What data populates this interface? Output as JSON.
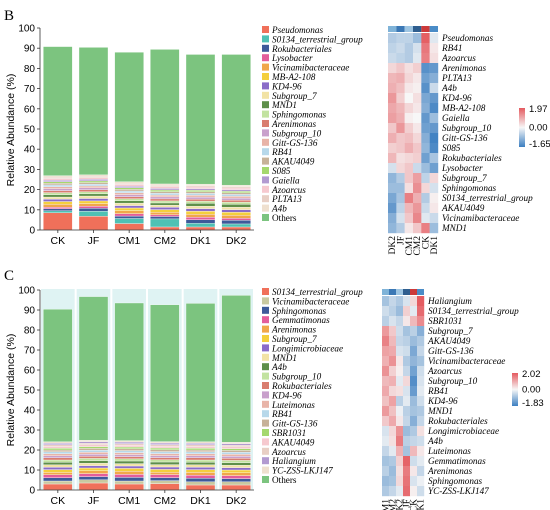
{
  "chart_data": [
    {
      "panel_label": "B",
      "type": "bar",
      "stacked": true,
      "ylabel": "Relative Abundance (%)",
      "ylim": [
        0,
        100
      ],
      "yticks": [
        "0",
        "10",
        "20",
        "30",
        "40",
        "50",
        "60",
        "70",
        "80",
        "90",
        "100"
      ],
      "categories": [
        "CK",
        "JF",
        "CM1",
        "CM2",
        "DK1",
        "DK2"
      ],
      "series": [
        {
          "name": "Pseudomonas",
          "color": "#f0705a",
          "values": [
            8.5,
            6.8,
            3.2,
            1.5,
            1.5,
            1.5
          ]
        },
        {
          "name": "S0134_terrestrial_group",
          "color": "#4fc1b4",
          "values": [
            1.0,
            2.5,
            2.5,
            4.0,
            1.8,
            1.5
          ]
        },
        {
          "name": "Rokubacteriales",
          "color": "#3d5a9a",
          "values": [
            1.0,
            1.5,
            1.2,
            1.2,
            1.8,
            1.8
          ]
        },
        {
          "name": "Lysobacter",
          "color": "#e35d9b",
          "values": [
            0.8,
            1.0,
            1.2,
            0.8,
            1.2,
            1.0
          ]
        },
        {
          "name": "Vicinamibacteraceae",
          "color": "#f0a74a",
          "values": [
            1.5,
            1.3,
            1.5,
            1.3,
            1.5,
            1.5
          ]
        },
        {
          "name": "MB-A2-108",
          "color": "#f4cf3c",
          "values": [
            1.3,
            1.3,
            1.3,
            1.3,
            1.5,
            1.5
          ]
        },
        {
          "name": "KD4-96",
          "color": "#8a6cc9",
          "values": [
            1.2,
            1.2,
            1.2,
            1.2,
            1.3,
            1.3
          ]
        },
        {
          "name": "Subgroup_7",
          "color": "#f2e3a5",
          "values": [
            1.0,
            1.2,
            1.2,
            1.0,
            1.2,
            1.2
          ]
        },
        {
          "name": "MND1",
          "color": "#5e8f4a",
          "values": [
            1.2,
            1.1,
            1.2,
            1.1,
            1.4,
            1.4
          ]
        },
        {
          "name": "Sphingomonas",
          "color": "#c2e3a0",
          "values": [
            1.0,
            1.0,
            1.0,
            1.0,
            1.1,
            1.1
          ]
        },
        {
          "name": "Arenimonas",
          "color": "#d97d6f",
          "values": [
            1.0,
            1.0,
            1.0,
            1.0,
            1.0,
            1.0
          ]
        },
        {
          "name": "Subgroup_10",
          "color": "#c9a0cc",
          "values": [
            1.0,
            1.0,
            1.0,
            1.0,
            1.0,
            1.0
          ]
        },
        {
          "name": "Gitt-GS-136",
          "color": "#e8b4a8",
          "values": [
            0.9,
            0.9,
            0.9,
            0.9,
            0.9,
            0.9
          ]
        },
        {
          "name": "RB41",
          "color": "#b7d8ea",
          "values": [
            0.9,
            0.9,
            0.9,
            0.9,
            0.9,
            0.9
          ]
        },
        {
          "name": "AKAU4049",
          "color": "#c7b299",
          "values": [
            0.8,
            0.8,
            0.8,
            0.8,
            0.8,
            0.8
          ]
        },
        {
          "name": "S085",
          "color": "#a5d86e",
          "values": [
            0.8,
            0.8,
            0.8,
            0.8,
            0.8,
            0.8
          ]
        },
        {
          "name": "Gaiella",
          "color": "#b29ad1",
          "values": [
            0.8,
            0.8,
            0.8,
            0.8,
            0.8,
            0.8
          ]
        },
        {
          "name": "Azoarcus",
          "color": "#f6c9cf",
          "values": [
            0.8,
            0.8,
            0.8,
            0.8,
            0.8,
            0.8
          ]
        },
        {
          "name": "PLTA13",
          "color": "#e8cfc5",
          "values": [
            0.7,
            0.7,
            0.7,
            0.7,
            0.7,
            0.7
          ]
        },
        {
          "name": "A4b",
          "color": "#efe0cf",
          "values": [
            0.7,
            0.7,
            0.7,
            0.7,
            0.7,
            0.7
          ]
        },
        {
          "name": "Others",
          "color": "#7cc47f",
          "values": [
            63.9,
            63.1,
            64.1,
            66.6,
            64.2,
            64.7
          ]
        }
      ]
    },
    {
      "panel_label": "",
      "type": "heatmap",
      "rows": [
        "Pseudomonas",
        "RB41",
        "Azoarcus",
        "Arenimonas",
        "PLTA13",
        "A4b",
        "KD4-96",
        "MB-A2-108",
        "Gaiella",
        "Subgroup_10",
        "Gitt-GS-136",
        "S085",
        "Rokubacteriales",
        "Lysobacter",
        "Subgroup_7",
        "Sphingomonas",
        "S0134_terrestrial_group",
        "AKAU4049",
        "Vicinamibacteraceae",
        "MND1"
      ],
      "columns": [
        "DK2",
        "JF",
        "CM1",
        "CM2",
        "CK",
        "DK1"
      ],
      "colorbar": {
        "min": "-1.65",
        "zero": "0.00",
        "max": "1.97",
        "low_color": "#3c7fc1",
        "mid_color": "#f7f7f7",
        "high_color": "#e45a5f"
      },
      "values": [
        [
          -0.6,
          -0.5,
          -0.5,
          -0.8,
          1.9,
          -0.2
        ],
        [
          -0.5,
          -0.4,
          -0.6,
          -0.3,
          1.6,
          0.2
        ],
        [
          -0.4,
          -0.5,
          -0.6,
          -0.2,
          1.5,
          0.3
        ],
        [
          0.4,
          0.6,
          0.3,
          0.5,
          -1.4,
          -1.3
        ],
        [
          0.8,
          0.9,
          0.4,
          0.2,
          -1.2,
          -1.0
        ],
        [
          0.9,
          0.7,
          0.2,
          0.1,
          -1.4,
          -0.4
        ],
        [
          1.2,
          0.5,
          0.0,
          0.3,
          -1.1,
          -1.3
        ],
        [
          1.0,
          0.8,
          0.4,
          0.2,
          -1.0,
          -1.5
        ],
        [
          1.1,
          0.9,
          0.1,
          0.0,
          -1.3,
          -0.8
        ],
        [
          0.6,
          1.2,
          0.5,
          0.2,
          -1.2,
          -1.3
        ],
        [
          0.9,
          0.6,
          0.7,
          0.4,
          -1.0,
          -1.6
        ],
        [
          0.5,
          0.6,
          0.9,
          0.6,
          -0.9,
          -1.5
        ],
        [
          0.8,
          0.3,
          0.4,
          0.5,
          -1.2,
          -0.7
        ],
        [
          -0.3,
          0.4,
          0.6,
          -0.4,
          -0.8,
          -1.2
        ],
        [
          -0.9,
          -0.6,
          0.6,
          1.1,
          -0.5,
          0.4
        ],
        [
          -0.8,
          -0.8,
          0.3,
          1.3,
          0.4,
          -0.3
        ],
        [
          -1.1,
          -0.7,
          1.5,
          0.9,
          -0.6,
          0.1
        ],
        [
          -1.3,
          -0.5,
          0.8,
          1.2,
          -0.4,
          0.2
        ],
        [
          -1.0,
          -0.3,
          0.6,
          1.4,
          -0.2,
          -0.4
        ],
        [
          -0.9,
          -0.6,
          0.2,
          0.6,
          1.5,
          -0.8
        ]
      ]
    },
    {
      "panel_label": "C",
      "type": "bar",
      "stacked": true,
      "ylabel": "Relative Abundance (%)",
      "ylim": [
        0,
        100
      ],
      "yticks": [
        "0",
        "10",
        "20",
        "30",
        "40",
        "50",
        "60",
        "70",
        "80",
        "90",
        "100"
      ],
      "categories": [
        "CK",
        "JF",
        "CM1",
        "CM2",
        "DK1",
        "DK2"
      ],
      "series": [
        {
          "name": "S0134_terrestrial_group",
          "color": "#f0705a",
          "values": [
            3.0,
            3.5,
            3.0,
            3.2,
            2.5,
            2.5
          ]
        },
        {
          "name": "Vicinamibacteraceae",
          "color": "#c9c9a0",
          "values": [
            1.5,
            1.6,
            1.5,
            1.5,
            1.6,
            1.6
          ]
        },
        {
          "name": "Sphingomonas",
          "color": "#3d5a9a",
          "values": [
            1.6,
            1.6,
            1.8,
            1.5,
            1.8,
            1.6
          ]
        },
        {
          "name": "Gemmatimonas",
          "color": "#e35d9b",
          "values": [
            1.5,
            1.5,
            1.5,
            1.5,
            1.5,
            1.5
          ]
        },
        {
          "name": "Arenimonas",
          "color": "#f0a74a",
          "values": [
            1.2,
            1.4,
            1.6,
            1.2,
            1.4,
            1.4
          ]
        },
        {
          "name": "Subgroup_7",
          "color": "#f4cf3c",
          "values": [
            1.4,
            1.4,
            1.4,
            1.4,
            1.4,
            1.4
          ]
        },
        {
          "name": "Longimicrobiaceae",
          "color": "#8a6cc9",
          "values": [
            1.2,
            1.2,
            1.2,
            1.2,
            1.2,
            1.2
          ]
        },
        {
          "name": "MND1",
          "color": "#f2e3a5",
          "values": [
            1.2,
            1.2,
            1.2,
            1.2,
            1.2,
            1.2
          ]
        },
        {
          "name": "A4b",
          "color": "#5e8f4a",
          "values": [
            1.3,
            1.3,
            1.3,
            1.3,
            1.3,
            1.3
          ]
        },
        {
          "name": "Subgroup_10",
          "color": "#c2e3a0",
          "values": [
            1.1,
            1.1,
            1.1,
            1.1,
            1.1,
            1.1
          ]
        },
        {
          "name": "Rokubacteriales",
          "color": "#d97d6f",
          "values": [
            1.1,
            1.1,
            1.1,
            1.1,
            1.1,
            1.1
          ]
        },
        {
          "name": "KD4-96",
          "color": "#c9a0cc",
          "values": [
            1.0,
            1.0,
            1.0,
            1.0,
            1.0,
            1.0
          ]
        },
        {
          "name": "Luteimonas",
          "color": "#e8b4a8",
          "values": [
            1.0,
            1.0,
            1.0,
            1.0,
            1.0,
            1.0
          ]
        },
        {
          "name": "RB41",
          "color": "#b7d8ea",
          "values": [
            1.0,
            1.0,
            1.0,
            1.0,
            1.0,
            1.0
          ]
        },
        {
          "name": "Gitt-GS-136",
          "color": "#c7b299",
          "values": [
            0.9,
            0.9,
            0.9,
            0.9,
            0.9,
            0.9
          ]
        },
        {
          "name": "SBR1031",
          "color": "#a5d86e",
          "values": [
            0.9,
            0.9,
            0.9,
            0.9,
            0.9,
            0.9
          ]
        },
        {
          "name": "AKAU4049",
          "color": "#f6c9cf",
          "values": [
            0.9,
            0.9,
            0.9,
            0.9,
            0.9,
            0.9
          ]
        },
        {
          "name": "Azoarcus",
          "color": "#e8cfc5",
          "values": [
            0.8,
            0.8,
            0.8,
            0.8,
            0.8,
            0.8
          ]
        },
        {
          "name": "Haliangium",
          "color": "#b29ad1",
          "values": [
            0.8,
            0.8,
            0.8,
            0.8,
            0.8,
            0.8
          ]
        },
        {
          "name": "YC-ZSS-LKJ147",
          "color": "#efe0cf",
          "values": [
            0.7,
            0.7,
            0.7,
            0.7,
            0.7,
            0.7
          ]
        },
        {
          "name": "Others",
          "color": "#7cc47f",
          "values": [
            66.3,
            71.8,
            68.8,
            68.4,
            69.2,
            73.4
          ]
        }
      ]
    },
    {
      "panel_label": "",
      "type": "heatmap",
      "rows": [
        "Haliangium",
        "S0134_terrestrial_group",
        "SBR1031",
        "Subgroup_7",
        "AKAU4049",
        "Gitt-GS-136",
        "Vicinamibacteraceae",
        "Azoarcus",
        "Subgroup_10",
        "RB41",
        "KD4-96",
        "MND1",
        "Rokubacteriales",
        "Longimicrobiaceae",
        "A4b",
        "Luteimonas",
        "Gemmatimonas",
        "Arenimonas",
        "Sphingomonas",
        "YC-ZSS-LKJ147"
      ],
      "columns": [
        "CM1",
        "CM2",
        "DK2",
        "JF",
        "CK",
        "DK1"
      ],
      "colorbar": {
        "min": "-1.83",
        "zero": "0.00",
        "max": "2.02",
        "low_color": "#3c7fc1",
        "mid_color": "#f7f7f7",
        "high_color": "#e45a5f"
      },
      "values": [
        [
          -0.8,
          -0.5,
          -0.7,
          -0.3,
          0.4,
          2.0
        ],
        [
          -0.4,
          -0.6,
          -0.9,
          0.5,
          -0.2,
          1.8
        ],
        [
          -0.6,
          -0.3,
          -0.5,
          0.2,
          0.8,
          1.4
        ],
        [
          1.2,
          0.6,
          -0.4,
          -0.8,
          -0.6,
          -1.1
        ],
        [
          1.5,
          0.8,
          -0.5,
          -0.6,
          -0.9,
          -0.7
        ],
        [
          1.1,
          1.0,
          -0.3,
          -0.4,
          -1.2,
          -0.5
        ],
        [
          0.9,
          1.3,
          0.2,
          -0.7,
          -1.0,
          -0.8
        ],
        [
          1.3,
          0.5,
          0.1,
          -0.5,
          -1.3,
          -0.4
        ],
        [
          0.8,
          0.9,
          -0.2,
          0.4,
          -1.6,
          -0.3
        ],
        [
          1.0,
          0.4,
          0.3,
          -0.3,
          -1.4,
          -0.2
        ],
        [
          0.7,
          1.1,
          -0.6,
          -0.2,
          -0.9,
          -0.4
        ],
        [
          1.2,
          0.7,
          -0.1,
          -0.6,
          -0.8,
          -0.7
        ],
        [
          0.6,
          1.0,
          0.2,
          -0.5,
          -1.1,
          -0.5
        ],
        [
          -0.3,
          0.4,
          1.3,
          -0.9,
          -0.7,
          0.3
        ],
        [
          -0.2,
          0.3,
          1.6,
          -0.6,
          -0.5,
          -0.4
        ],
        [
          -0.5,
          -0.2,
          0.9,
          -0.8,
          0.8,
          0.2
        ],
        [
          -0.8,
          -0.7,
          0.5,
          1.9,
          -0.4,
          -0.2
        ],
        [
          -0.6,
          -0.9,
          0.3,
          1.6,
          0.2,
          -0.5
        ],
        [
          -0.9,
          -0.8,
          0.4,
          1.7,
          -0.3,
          -0.1
        ],
        [
          -0.7,
          -0.5,
          -0.2,
          1.8,
          0.1,
          -0.4
        ]
      ]
    }
  ]
}
